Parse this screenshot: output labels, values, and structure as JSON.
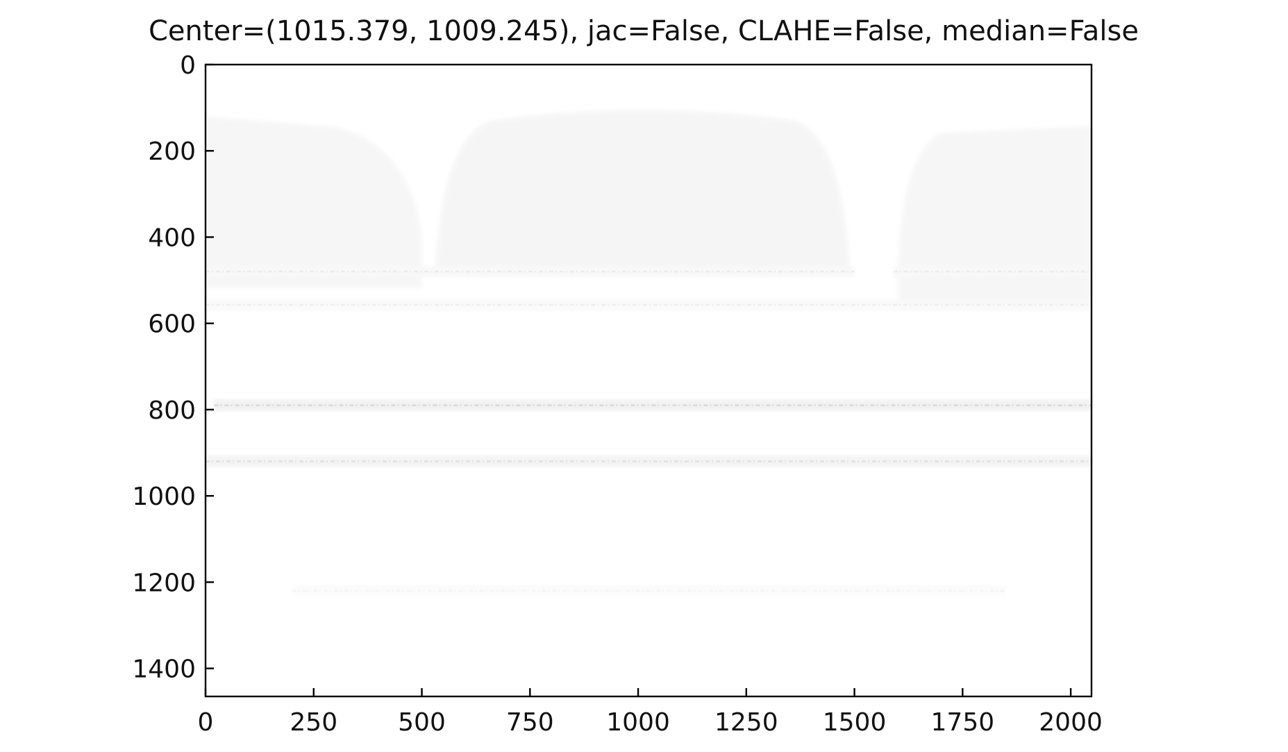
{
  "chart_data": {
    "type": "heatmap",
    "title": "Center=(1015.379, 1009.245), jac=False, CLAHE=False, median=False",
    "xlabel": "",
    "ylabel": "",
    "xlim": [
      0,
      2048
    ],
    "ylim": [
      1465,
      0
    ],
    "y_axis_inverted": true,
    "grid": false,
    "colormap": "gray_r",
    "x_ticks": [
      0,
      250,
      500,
      750,
      1000,
      1250,
      1500,
      1750,
      2000
    ],
    "x_tick_labels": [
      "0",
      "250",
      "500",
      "750",
      "1000",
      "1250",
      "1500",
      "1750",
      "2000"
    ],
    "y_ticks": [
      0,
      200,
      400,
      600,
      800,
      1000,
      1200,
      1400
    ],
    "y_tick_labels": [
      "0",
      "200",
      "400",
      "600",
      "800",
      "1000",
      "1200",
      "1400"
    ],
    "image_regions": [
      {
        "kind": "faint_blob",
        "description_free_x_span": [
          0,
          500
        ],
        "y_span": [
          120,
          390
        ],
        "intensity": 0.035
      },
      {
        "kind": "faint_blob",
        "x_span": [
          530,
          1490
        ],
        "y_span": [
          105,
          480
        ],
        "intensity": 0.04
      },
      {
        "kind": "faint_blob",
        "x_span": [
          1600,
          2048
        ],
        "y_span": [
          150,
          470
        ],
        "intensity": 0.035
      }
    ],
    "streaks": [
      {
        "y": 480,
        "x_span": [
          0,
          1500
        ],
        "intensity": 0.08
      },
      {
        "y": 480,
        "x_span": [
          1590,
          2048
        ],
        "intensity": 0.08
      },
      {
        "y": 557,
        "x_span": [
          0,
          2048
        ],
        "intensity": 0.07
      },
      {
        "y": 790,
        "x_span": [
          20,
          2048
        ],
        "intensity": 0.16
      },
      {
        "y": 920,
        "x_span": [
          0,
          2048
        ],
        "intensity": 0.13
      },
      {
        "y": 1220,
        "x_span": [
          200,
          1850
        ],
        "intensity": 0.04
      }
    ],
    "background_intensity_top": 0.03,
    "background_intensity_bottom": 0.0
  }
}
